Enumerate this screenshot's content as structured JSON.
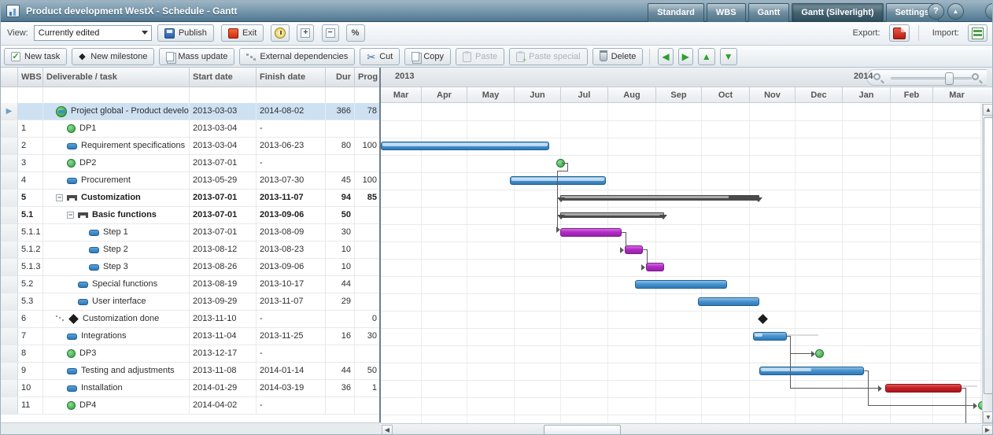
{
  "title_bar": {
    "title": "Product development WestX - Schedule - Gantt",
    "tabs": [
      {
        "label": "Standard",
        "active": false
      },
      {
        "label": "WBS",
        "active": false
      },
      {
        "label": "Gantt",
        "active": false
      },
      {
        "label": "Gantt (Silverlight)",
        "active": true
      },
      {
        "label": "Settings",
        "active": false
      }
    ],
    "help_button": "?",
    "collapse_button": "▲"
  },
  "toolbar": {
    "view_label": "View:",
    "view_value": "Currently edited",
    "publish_label": "Publish",
    "exit_label": "Exit",
    "icon_buttons": [
      "history-icon",
      "expand-all-icon",
      "collapse-all-icon",
      "percent-icon"
    ],
    "export_label": "Export:",
    "import_label": "Import:"
  },
  "edit_toolbar": {
    "buttons": [
      {
        "label": "New task",
        "icon": "new-task-icon",
        "enabled": true
      },
      {
        "label": "New milestone",
        "icon": "new-milestone-icon",
        "enabled": true
      },
      {
        "label": "Mass update",
        "icon": "mass-update-icon",
        "enabled": true
      },
      {
        "label": "External dependencies",
        "icon": "external-dependencies-icon",
        "enabled": true
      },
      {
        "label": "Cut",
        "icon": "cut-icon",
        "enabled": true
      },
      {
        "label": "Copy",
        "icon": "copy-icon",
        "enabled": true
      },
      {
        "label": "Paste",
        "icon": "paste-icon",
        "enabled": false
      },
      {
        "label": "Paste special",
        "icon": "paste-special-icon",
        "enabled": false
      },
      {
        "label": "Delete",
        "icon": "delete-icon",
        "enabled": true
      }
    ],
    "move_buttons": [
      {
        "icon": "move-left-icon",
        "glyph": "◀"
      },
      {
        "icon": "move-right-icon",
        "glyph": "▶"
      },
      {
        "icon": "move-up-icon",
        "glyph": "▲"
      },
      {
        "icon": "move-down-icon",
        "glyph": "▼"
      }
    ]
  },
  "table": {
    "columns": [
      "WBS",
      "Deliverable / task",
      "Start date",
      "Finish date",
      "Dur",
      "Prog"
    ],
    "rows": [
      {
        "wbs": "",
        "name": "Project global - Product developm",
        "start": "2013-03-03",
        "finish": "2014-08-02",
        "dur": "366",
        "prog": "78",
        "type": "project",
        "level": 0,
        "selected": true,
        "bold": false,
        "bar": "none"
      },
      {
        "wbs": "1",
        "name": "DP1",
        "start": "2013-03-04",
        "finish": "-",
        "dur": "",
        "prog": "",
        "type": "milestone",
        "level": 1,
        "bar": "none"
      },
      {
        "wbs": "2",
        "name": "Requirement specifications",
        "start": "2013-03-04",
        "finish": "2013-06-23",
        "dur": "80",
        "prog": "100",
        "type": "task",
        "level": 1,
        "bar": "blue"
      },
      {
        "wbs": "3",
        "name": "DP2",
        "start": "2013-07-01",
        "finish": "-",
        "dur": "",
        "prog": "",
        "type": "milestone",
        "level": 1,
        "bar": "milestone"
      },
      {
        "wbs": "4",
        "name": "Procurement",
        "start": "2013-05-29",
        "finish": "2013-07-30",
        "dur": "45",
        "prog": "100",
        "type": "task",
        "level": 1,
        "bar": "blue"
      },
      {
        "wbs": "5",
        "name": "Customization",
        "start": "2013-07-01",
        "finish": "2013-11-07",
        "dur": "94",
        "prog": "85",
        "type": "summary",
        "level": 1,
        "bold": true,
        "collapse": true,
        "bar": "summary"
      },
      {
        "wbs": "5.1",
        "name": "Basic functions",
        "start": "2013-07-01",
        "finish": "2013-09-06",
        "dur": "50",
        "prog": "",
        "type": "summary",
        "level": 2,
        "bold": true,
        "collapse": true,
        "bar": "summary"
      },
      {
        "wbs": "5.1.1",
        "name": "Step 1",
        "start": "2013-07-01",
        "finish": "2013-08-09",
        "dur": "30",
        "prog": "",
        "type": "task",
        "level": 3,
        "bar": "magenta"
      },
      {
        "wbs": "5.1.2",
        "name": "Step 2",
        "start": "2013-08-12",
        "finish": "2013-08-23",
        "dur": "10",
        "prog": "",
        "type": "task",
        "level": 3,
        "bar": "magenta"
      },
      {
        "wbs": "5.1.3",
        "name": "Step 3",
        "start": "2013-08-26",
        "finish": "2013-09-06",
        "dur": "10",
        "prog": "",
        "type": "task",
        "level": 3,
        "bar": "magenta"
      },
      {
        "wbs": "5.2",
        "name": "Special functions",
        "start": "2013-08-19",
        "finish": "2013-10-17",
        "dur": "44",
        "prog": "",
        "type": "task",
        "level": 2,
        "bar": "blue"
      },
      {
        "wbs": "5.3",
        "name": "User interface",
        "start": "2013-09-29",
        "finish": "2013-11-07",
        "dur": "29",
        "prog": "",
        "type": "task",
        "level": 2,
        "bar": "blue"
      },
      {
        "wbs": "6",
        "name": "Customization done",
        "start": "2013-11-10",
        "finish": "-",
        "dur": "",
        "prog": "0",
        "type": "milestone-black",
        "level": 1,
        "extdep": true,
        "bar": "milestone-black"
      },
      {
        "wbs": "7",
        "name": "Integrations",
        "start": "2013-11-04",
        "finish": "2013-11-25",
        "dur": "16",
        "prog": "30",
        "type": "task",
        "level": 1,
        "bar": "blue"
      },
      {
        "wbs": "8",
        "name": "DP3",
        "start": "2013-12-17",
        "finish": "-",
        "dur": "",
        "prog": "",
        "type": "milestone",
        "level": 1,
        "bar": "milestone"
      },
      {
        "wbs": "9",
        "name": "Testing and adjustments",
        "start": "2013-11-08",
        "finish": "2014-01-14",
        "dur": "44",
        "prog": "50",
        "type": "task",
        "level": 1,
        "bar": "blue"
      },
      {
        "wbs": "10",
        "name": "Installation",
        "start": "2014-01-29",
        "finish": "2014-03-19",
        "dur": "36",
        "prog": "1",
        "type": "task",
        "level": 1,
        "bar": "red"
      },
      {
        "wbs": "11",
        "name": "DP4",
        "start": "2014-04-02",
        "finish": "-",
        "dur": "",
        "prog": "",
        "type": "milestone",
        "level": 1,
        "bar": "milestone"
      }
    ]
  },
  "timeline": {
    "years": [
      "2013",
      "2014"
    ],
    "months": [
      "Mar",
      "Apr",
      "May",
      "Jun",
      "Jul",
      "Aug",
      "Sep",
      "Oct",
      "Nov",
      "Dec",
      "Jan",
      "Feb",
      "Mar"
    ]
  },
  "colors": {
    "task_bar": "#2d7ab8",
    "subtask_bar": "#b02cc2",
    "critical_bar": "#c42026",
    "summary_bar": "#4a4a4a",
    "milestone": "#2f9e3f",
    "selected_row": "#cde1f2"
  }
}
